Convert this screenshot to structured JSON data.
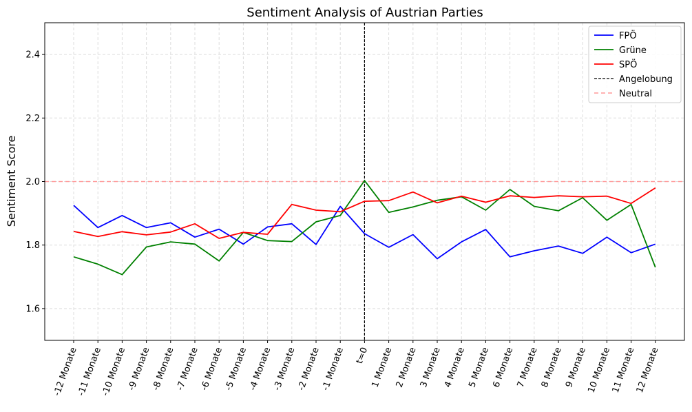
{
  "chart_data": {
    "type": "line",
    "title": "Sentiment Analysis of Austrian Parties",
    "xlabel": "",
    "ylabel": "Sentiment Score",
    "ylim": [
      1.5,
      2.5
    ],
    "yticks": [
      "1.6",
      "1.8",
      "2.0",
      "2.2",
      "2.4"
    ],
    "grid": true,
    "legend_position": "top-right",
    "categories": [
      "-12 Monate",
      "-11 Monate",
      "-10 Monate",
      "-9 Monate",
      "-8 Monate",
      "-7 Monate",
      "-6 Monate",
      "-5 Monate",
      "-4 Monate",
      "-3 Monate",
      "-2 Monate",
      "-1 Monate",
      "t=0",
      "1 Monate",
      "2 Monate",
      "3 Monate",
      "4 Monate",
      "5 Monate",
      "6 Monate",
      "7 Monate",
      "8 Monate",
      "9 Monate",
      "10 Monate",
      "11 Monate",
      "12 Monate"
    ],
    "series": [
      {
        "name": "FPÖ",
        "color": "#0000ff",
        "values": [
          1.925,
          1.855,
          1.893,
          1.855,
          1.87,
          1.825,
          1.85,
          1.803,
          1.857,
          1.867,
          1.802,
          1.922,
          1.836,
          1.793,
          1.833,
          1.757,
          1.81,
          1.849,
          1.763,
          1.782,
          1.797,
          1.774,
          1.825,
          1.776,
          1.803
        ]
      },
      {
        "name": "Grüne",
        "color": "#008000",
        "values": [
          1.763,
          1.74,
          1.707,
          1.794,
          1.81,
          1.803,
          1.75,
          1.84,
          1.814,
          1.811,
          1.873,
          1.893,
          2.003,
          1.903,
          1.92,
          1.941,
          1.952,
          1.91,
          1.975,
          1.922,
          1.908,
          1.949,
          1.878,
          1.928,
          1.73
        ]
      },
      {
        "name": "SPÖ",
        "color": "#ff0000",
        "values": [
          1.843,
          1.827,
          1.842,
          1.832,
          1.841,
          1.867,
          1.821,
          1.84,
          1.834,
          1.928,
          1.91,
          1.905,
          1.938,
          1.94,
          1.967,
          1.933,
          1.954,
          1.935,
          1.955,
          1.95,
          1.955,
          1.952,
          1.954,
          1.931,
          1.98
        ]
      }
    ],
    "vline": {
      "label": "Angelobung",
      "x": "t=0",
      "color": "#000000"
    },
    "hline": {
      "label": "Neutral",
      "y": 2.0,
      "color": "#ff9999"
    }
  }
}
